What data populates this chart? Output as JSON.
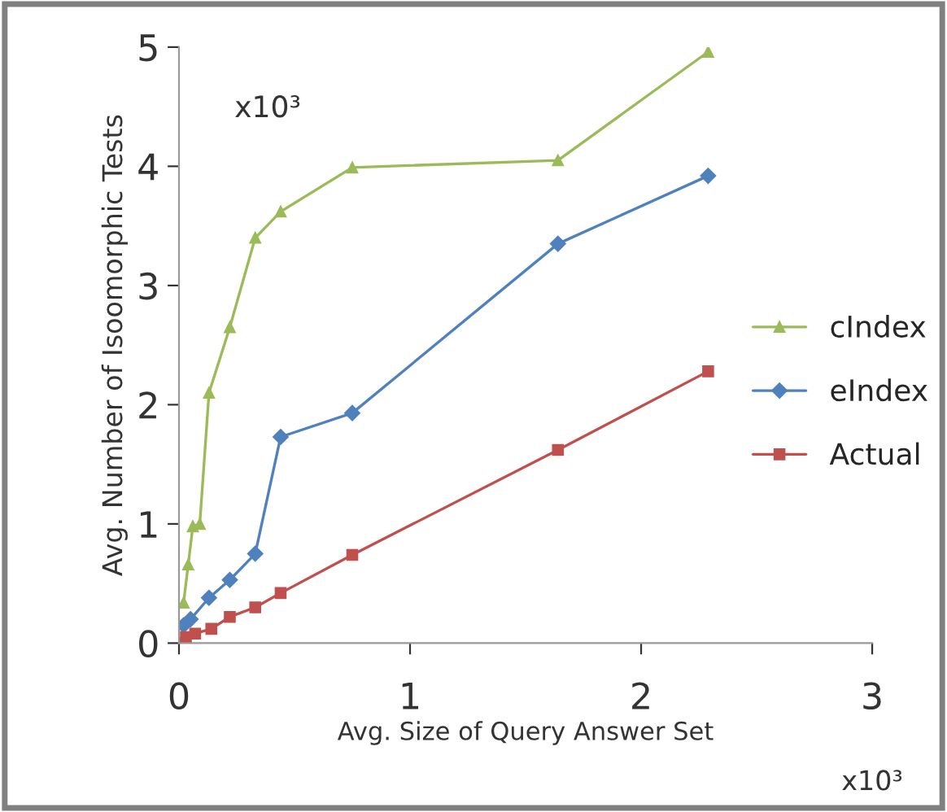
{
  "chart_data": {
    "type": "line",
    "xlabel": "Avg. Size of Query Answer Set",
    "ylabel": "Avg. Number of Isoomorphic Tests",
    "annotations": [
      "x10³",
      "x10³"
    ],
    "xlim": [
      0,
      3
    ],
    "xticks": [
      0,
      1,
      2,
      3
    ],
    "ylim": [
      0,
      5
    ],
    "yticks": [
      0,
      1,
      2,
      3,
      4,
      5
    ],
    "grid": false,
    "legend": "right",
    "line_style": "solid",
    "series": [
      {
        "name": "cIndex",
        "color": "#9bbb59",
        "marker": "triangle",
        "x": [
          0.02,
          0.04,
          0.06,
          0.09,
          0.13,
          0.22,
          0.33,
          0.44,
          0.75,
          1.64,
          2.29
        ],
        "values": [
          0.34,
          0.66,
          0.98,
          1.0,
          2.1,
          2.65,
          3.4,
          3.62,
          3.99,
          4.05,
          4.96
        ]
      },
      {
        "name": "eIndex",
        "color": "#4f81bd",
        "marker": "diamond",
        "x": [
          0.02,
          0.05,
          0.13,
          0.22,
          0.33,
          0.44,
          0.75,
          1.64,
          2.29
        ],
        "values": [
          0.15,
          0.2,
          0.38,
          0.53,
          0.75,
          1.73,
          1.93,
          3.35,
          3.92
        ]
      },
      {
        "name": "Actual",
        "color": "#c0504d",
        "marker": "square",
        "x": [
          0,
          0.03,
          0.07,
          0.14,
          0.22,
          0.33,
          0.44,
          0.75,
          1.64,
          2.29
        ],
        "values": [
          0,
          0.05,
          0.08,
          0.12,
          0.22,
          0.3,
          0.42,
          0.74,
          1.62,
          2.28
        ]
      }
    ]
  }
}
